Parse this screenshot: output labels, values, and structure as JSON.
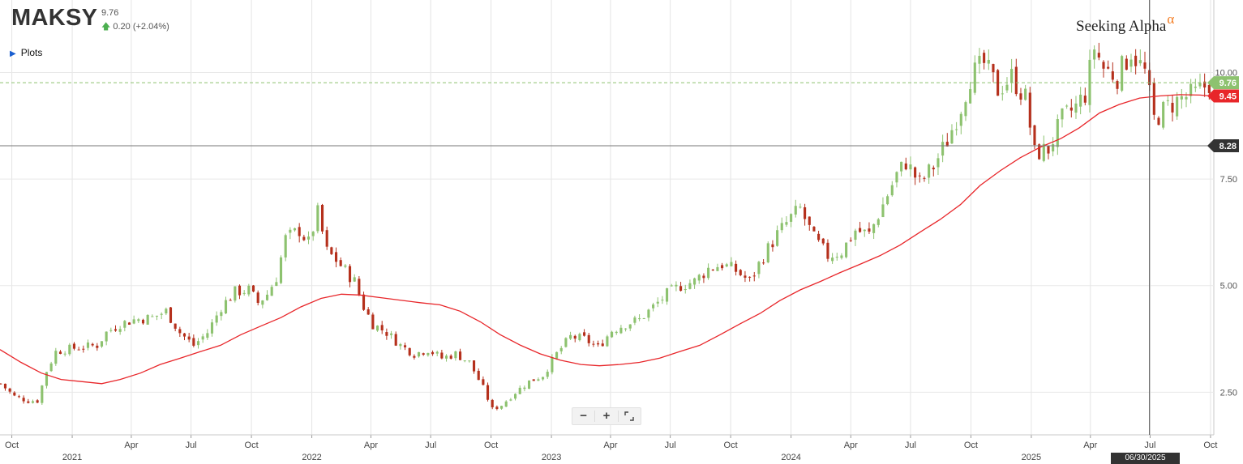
{
  "header": {
    "ticker": "MAKSY",
    "price": "9.76",
    "change": "0.20 (+2.04%)",
    "change_icon": "arrow-up-icon",
    "plots_label": "Plots",
    "brand": "Seeking Alpha",
    "brand_mark": "α"
  },
  "zoom": {
    "minus": "−",
    "plus": "+",
    "expand_icon": "expand-icon"
  },
  "crosshair": {
    "date_label": "06/30/2025",
    "price_label": "8.28",
    "price": 8.28
  },
  "colors": {
    "up": "#8dc26f",
    "down": "#b5301c",
    "ma": "#e8262a",
    "last_price": "#8dc26f",
    "ma_badge": "#e8262a"
  },
  "chart_data": {
    "type": "candlestick",
    "y_ticks": [
      "2.50",
      "5.00",
      "7.50",
      "10.00"
    ],
    "y_tick_values": [
      2.5,
      5.0,
      7.5,
      10.0
    ],
    "ylim": [
      1.5,
      11.7
    ],
    "xlim": [
      "2020-09-13",
      "2025-10-06"
    ],
    "x_ticks": [
      {
        "date": "2020-10-01",
        "label": "Oct"
      },
      {
        "date": "2021-01-01",
        "label": "2021"
      },
      {
        "date": "2021-04-01",
        "label": "Apr"
      },
      {
        "date": "2021-07-01",
        "label": "Jul"
      },
      {
        "date": "2021-10-01",
        "label": "Oct"
      },
      {
        "date": "2022-01-01",
        "label": "2022"
      },
      {
        "date": "2022-04-01",
        "label": "Apr"
      },
      {
        "date": "2022-07-01",
        "label": "Jul"
      },
      {
        "date": "2022-10-01",
        "label": "Oct"
      },
      {
        "date": "2023-01-01",
        "label": "2023"
      },
      {
        "date": "2023-04-01",
        "label": "Apr"
      },
      {
        "date": "2023-07-01",
        "label": "Jul"
      },
      {
        "date": "2023-10-01",
        "label": "Oct"
      },
      {
        "date": "2024-01-01",
        "label": "2024"
      },
      {
        "date": "2024-04-01",
        "label": "Apr"
      },
      {
        "date": "2024-07-01",
        "label": "Jul"
      },
      {
        "date": "2024-10-01",
        "label": "Oct"
      },
      {
        "date": "2025-01-01",
        "label": "2025"
      },
      {
        "date": "2025-04-01",
        "label": "Apr"
      },
      {
        "date": "2025-07-01",
        "label": "Jul"
      },
      {
        "date": "2025-10-01",
        "label": "Oct"
      }
    ],
    "last_price": 9.76,
    "last_price_label": "9.76",
    "moving_average_last": 9.45,
    "moving_average_label": "9.45",
    "price_path": [
      [
        "2020-09-14",
        2.7
      ],
      [
        "2020-10-05",
        2.4
      ],
      [
        "2020-10-26",
        2.3
      ],
      [
        "2020-11-09",
        2.3
      ],
      [
        "2020-11-23",
        3.0
      ],
      [
        "2020-12-07",
        3.45
      ],
      [
        "2020-12-21",
        3.5
      ],
      [
        "2021-01-11",
        3.55
      ],
      [
        "2021-02-08",
        3.6
      ],
      [
        "2021-02-22",
        3.9
      ],
      [
        "2021-03-15",
        4.1
      ],
      [
        "2021-04-05",
        4.2
      ],
      [
        "2021-05-03",
        4.25
      ],
      [
        "2021-05-24",
        4.4
      ],
      [
        "2021-06-14",
        3.9
      ],
      [
        "2021-07-05",
        3.6
      ],
      [
        "2021-07-26",
        3.9
      ],
      [
        "2021-08-16",
        4.5
      ],
      [
        "2021-09-06",
        4.85
      ],
      [
        "2021-09-27",
        4.9
      ],
      [
        "2021-10-11",
        4.6
      ],
      [
        "2021-10-25",
        4.8
      ],
      [
        "2021-11-08",
        5.2
      ],
      [
        "2021-11-22",
        6.1
      ],
      [
        "2021-12-13",
        6.3
      ],
      [
        "2021-12-27",
        6.0
      ],
      [
        "2022-01-10",
        6.7
      ],
      [
        "2022-01-24",
        5.8
      ],
      [
        "2022-02-07",
        5.6
      ],
      [
        "2022-03-07",
        5.1
      ],
      [
        "2022-03-21",
        4.5
      ],
      [
        "2022-04-04",
        4.1
      ],
      [
        "2022-04-25",
        3.9
      ],
      [
        "2022-05-16",
        3.6
      ],
      [
        "2022-06-06",
        3.4
      ],
      [
        "2022-06-27",
        3.5
      ],
      [
        "2022-07-18",
        3.3
      ],
      [
        "2022-08-08",
        3.4
      ],
      [
        "2022-08-29",
        3.2
      ],
      [
        "2022-09-19",
        2.6
      ],
      [
        "2022-10-03",
        2.1
      ],
      [
        "2022-10-17",
        2.2
      ],
      [
        "2022-11-07",
        2.5
      ],
      [
        "2022-11-28",
        2.75
      ],
      [
        "2022-12-19",
        2.9
      ],
      [
        "2023-01-09",
        3.4
      ],
      [
        "2023-01-30",
        3.8
      ],
      [
        "2023-02-20",
        3.75
      ],
      [
        "2023-03-13",
        3.55
      ],
      [
        "2023-04-03",
        3.95
      ],
      [
        "2023-04-24",
        4.1
      ],
      [
        "2023-05-15",
        4.2
      ],
      [
        "2023-06-05",
        4.5
      ],
      [
        "2023-06-26",
        4.8
      ],
      [
        "2023-07-17",
        5.0
      ],
      [
        "2023-08-07",
        5.1
      ],
      [
        "2023-08-28",
        5.4
      ],
      [
        "2023-09-18",
        5.5
      ],
      [
        "2023-10-09",
        5.35
      ],
      [
        "2023-10-30",
        5.1
      ],
      [
        "2023-11-20",
        5.7
      ],
      [
        "2023-12-11",
        6.2
      ],
      [
        "2024-01-01",
        6.6
      ],
      [
        "2024-01-15",
        6.8
      ],
      [
        "2024-02-05",
        6.1
      ],
      [
        "2024-02-26",
        5.7
      ],
      [
        "2024-03-18",
        5.8
      ],
      [
        "2024-04-08",
        6.3
      ],
      [
        "2024-04-29",
        6.2
      ],
      [
        "2024-05-20",
        6.9
      ],
      [
        "2024-06-10",
        7.6
      ],
      [
        "2024-06-24",
        7.9
      ],
      [
        "2024-07-15",
        7.4
      ],
      [
        "2024-08-05",
        7.8
      ],
      [
        "2024-08-26",
        8.4
      ],
      [
        "2024-09-16",
        9.2
      ],
      [
        "2024-09-30",
        9.9
      ],
      [
        "2024-10-21",
        10.2
      ],
      [
        "2024-11-11",
        9.6
      ],
      [
        "2024-12-02",
        9.9
      ],
      [
        "2024-12-23",
        9.4
      ],
      [
        "2025-01-06",
        8.1
      ],
      [
        "2025-01-27",
        8.2
      ],
      [
        "2025-02-17",
        8.9
      ],
      [
        "2025-03-10",
        9.2
      ],
      [
        "2025-03-24",
        9.5
      ],
      [
        "2025-04-07",
        10.6
      ],
      [
        "2025-04-21",
        10.1
      ],
      [
        "2025-05-12",
        9.9
      ],
      [
        "2025-06-02",
        10.5
      ],
      [
        "2025-06-23",
        10.0
      ],
      [
        "2025-07-07",
        8.9
      ],
      [
        "2025-07-28",
        9.2
      ],
      [
        "2025-08-18",
        9.4
      ],
      [
        "2025-09-08",
        9.5
      ],
      [
        "2025-09-29",
        9.76
      ]
    ],
    "moving_average": [
      [
        "2020-09-13",
        3.5
      ],
      [
        "2020-10-15",
        3.2
      ],
      [
        "2020-11-15",
        2.95
      ],
      [
        "2020-12-15",
        2.8
      ],
      [
        "2021-01-15",
        2.75
      ],
      [
        "2021-02-15",
        2.7
      ],
      [
        "2021-03-15",
        2.8
      ],
      [
        "2021-04-15",
        2.95
      ],
      [
        "2021-05-15",
        3.15
      ],
      [
        "2021-06-15",
        3.3
      ],
      [
        "2021-07-15",
        3.45
      ],
      [
        "2021-08-15",
        3.6
      ],
      [
        "2021-09-15",
        3.85
      ],
      [
        "2021-10-15",
        4.05
      ],
      [
        "2021-11-15",
        4.25
      ],
      [
        "2021-12-15",
        4.5
      ],
      [
        "2022-01-15",
        4.7
      ],
      [
        "2022-02-15",
        4.8
      ],
      [
        "2022-03-15",
        4.78
      ],
      [
        "2022-04-15",
        4.72
      ],
      [
        "2022-05-15",
        4.66
      ],
      [
        "2022-06-15",
        4.6
      ],
      [
        "2022-07-15",
        4.55
      ],
      [
        "2022-08-15",
        4.4
      ],
      [
        "2022-09-15",
        4.15
      ],
      [
        "2022-10-15",
        3.85
      ],
      [
        "2022-11-15",
        3.6
      ],
      [
        "2022-12-15",
        3.4
      ],
      [
        "2023-01-15",
        3.25
      ],
      [
        "2023-02-15",
        3.15
      ],
      [
        "2023-03-15",
        3.12
      ],
      [
        "2023-04-15",
        3.15
      ],
      [
        "2023-05-15",
        3.2
      ],
      [
        "2023-06-15",
        3.3
      ],
      [
        "2023-07-15",
        3.45
      ],
      [
        "2023-08-15",
        3.6
      ],
      [
        "2023-09-15",
        3.85
      ],
      [
        "2023-10-15",
        4.1
      ],
      [
        "2023-11-15",
        4.35
      ],
      [
        "2023-12-15",
        4.65
      ],
      [
        "2024-01-15",
        4.9
      ],
      [
        "2024-02-15",
        5.1
      ],
      [
        "2024-03-15",
        5.3
      ],
      [
        "2024-04-15",
        5.5
      ],
      [
        "2024-05-15",
        5.7
      ],
      [
        "2024-06-15",
        5.95
      ],
      [
        "2024-07-15",
        6.25
      ],
      [
        "2024-08-15",
        6.55
      ],
      [
        "2024-09-15",
        6.9
      ],
      [
        "2024-10-15",
        7.35
      ],
      [
        "2024-11-15",
        7.7
      ],
      [
        "2024-12-15",
        8.0
      ],
      [
        "2025-01-15",
        8.25
      ],
      [
        "2025-02-15",
        8.45
      ],
      [
        "2025-03-15",
        8.7
      ],
      [
        "2025-04-15",
        9.05
      ],
      [
        "2025-05-15",
        9.25
      ],
      [
        "2025-06-15",
        9.4
      ],
      [
        "2025-07-15",
        9.45
      ],
      [
        "2025-08-15",
        9.48
      ],
      [
        "2025-09-15",
        9.47
      ],
      [
        "2025-10-01",
        9.45
      ]
    ]
  }
}
